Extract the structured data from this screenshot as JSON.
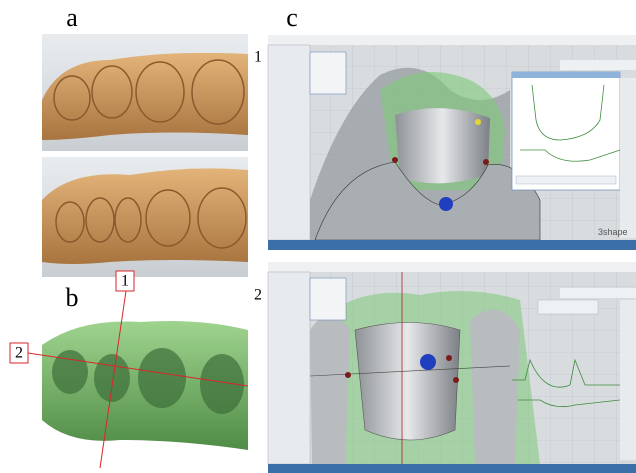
{
  "panels": {
    "a": {
      "label": "a"
    },
    "b": {
      "label": "b",
      "markers": [
        "1",
        "2"
      ]
    },
    "c": {
      "label": "c",
      "rows": [
        "1",
        "2"
      ],
      "brand": "3shape"
    }
  }
}
